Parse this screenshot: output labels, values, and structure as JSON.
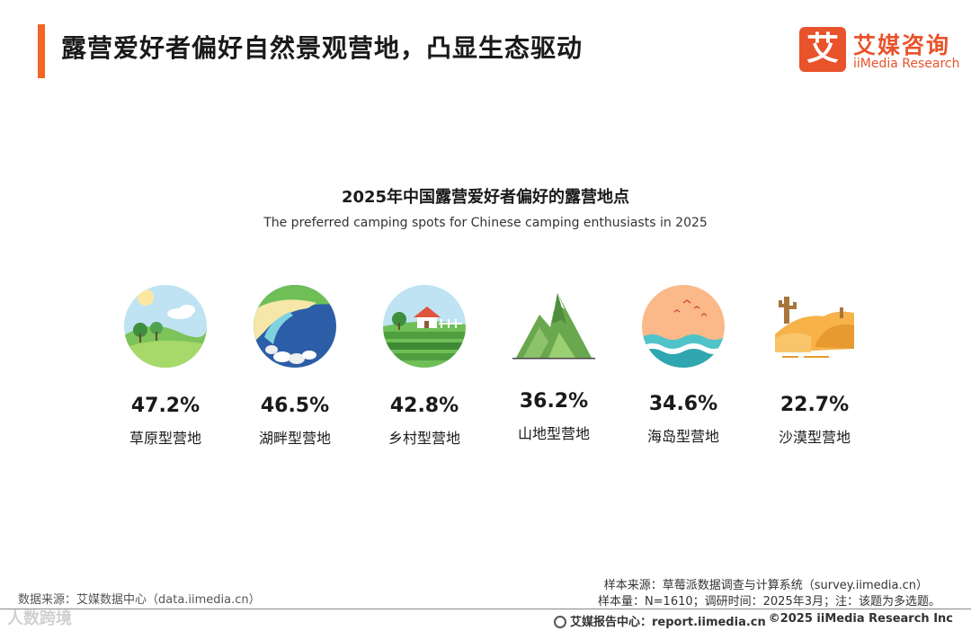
{
  "header": {
    "title": "露营爱好者偏好自然景观营地，凸显生态驱动",
    "accent_color": "#f26522"
  },
  "logo": {
    "mark": "艾",
    "name_cn": "艾媒咨询",
    "name_en": "iiMedia Research",
    "color": "#e8532b"
  },
  "chart_data": {
    "type": "table",
    "title": "2025年中国露营爱好者偏好的露营地点",
    "subtitle": "The preferred camping spots for Chinese camping enthusiasts in 2025",
    "categories": [
      "草原型营地",
      "湖畔型营地",
      "乡村型营地",
      "山地型营地",
      "海岛型营地",
      "沙漠型营地"
    ],
    "values_display": [
      "47.2%",
      "46.5%",
      "42.8%",
      "36.2%",
      "34.6%",
      "22.7%"
    ],
    "values": [
      47.2,
      46.5,
      42.8,
      36.2,
      34.6,
      22.7
    ],
    "icons": [
      "grassland-icon",
      "lakeside-icon",
      "village-icon",
      "mountain-icon",
      "island-icon",
      "desert-icon"
    ],
    "unit": "%"
  },
  "footer": {
    "source": "数据来源：艾媒数据中心（data.iimedia.cn）",
    "sample_source": "样本来源：草莓派数据调查与计算系统（survey.iimedia.cn）",
    "sample_info": "样本量：N=1610；调研时间：2025年3月；注：该题为多选题。",
    "report_center": "艾媒报告中心：report.iimedia.cn",
    "copyright": "©2025  iiMedia Research  Inc",
    "watermark": "人数跨境"
  }
}
